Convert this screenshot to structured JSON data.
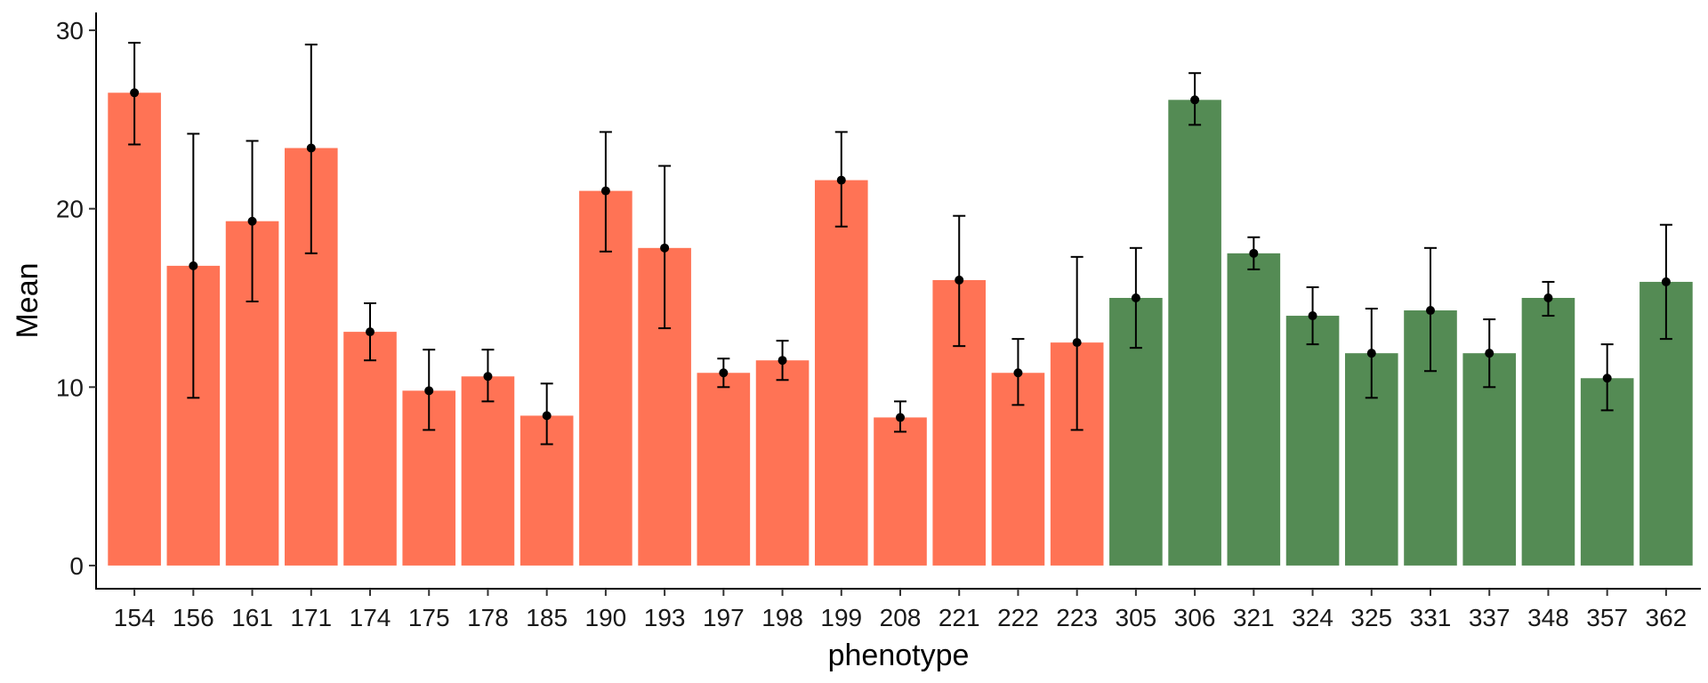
{
  "chart_data": {
    "type": "bar",
    "xlabel": "phenotype",
    "ylabel": "Mean",
    "ylim": [
      -1.3,
      31
    ],
    "yticks": [
      0,
      10,
      20,
      30
    ],
    "grid": false,
    "legend": "none",
    "categories": [
      "154",
      "156",
      "161",
      "171",
      "174",
      "175",
      "178",
      "185",
      "190",
      "193",
      "197",
      "198",
      "199",
      "208",
      "221",
      "222",
      "223",
      "305",
      "306",
      "321",
      "324",
      "325",
      "331",
      "337",
      "348",
      "357",
      "362"
    ],
    "values": [
      26.5,
      16.8,
      19.3,
      23.4,
      13.1,
      9.8,
      10.6,
      8.4,
      21.0,
      17.8,
      10.8,
      11.5,
      21.6,
      8.3,
      16.0,
      10.8,
      12.5,
      15.0,
      26.1,
      17.5,
      14.0,
      11.9,
      14.3,
      11.9,
      15.0,
      10.5,
      15.9
    ],
    "error_low": [
      23.6,
      9.4,
      14.8,
      17.5,
      11.5,
      7.6,
      9.2,
      6.8,
      17.6,
      13.3,
      10.0,
      10.4,
      19.0,
      7.5,
      12.3,
      9.0,
      7.6,
      12.2,
      24.7,
      16.6,
      12.4,
      9.4,
      10.9,
      10.0,
      14.0,
      8.7,
      12.7
    ],
    "error_high": [
      29.3,
      24.2,
      23.8,
      29.2,
      14.7,
      12.1,
      12.1,
      10.2,
      24.3,
      22.4,
      11.6,
      12.6,
      24.3,
      9.2,
      19.6,
      12.7,
      17.3,
      17.8,
      27.6,
      18.4,
      15.6,
      14.4,
      17.8,
      13.8,
      15.9,
      12.4,
      19.1
    ],
    "bar_group": [
      "a",
      "a",
      "a",
      "a",
      "a",
      "a",
      "a",
      "a",
      "a",
      "a",
      "a",
      "a",
      "a",
      "a",
      "a",
      "a",
      "a",
      "b",
      "b",
      "b",
      "b",
      "b",
      "b",
      "b",
      "b",
      "b",
      "b"
    ],
    "group_colors": {
      "a": "#FF7355",
      "b": "#548B54"
    }
  }
}
